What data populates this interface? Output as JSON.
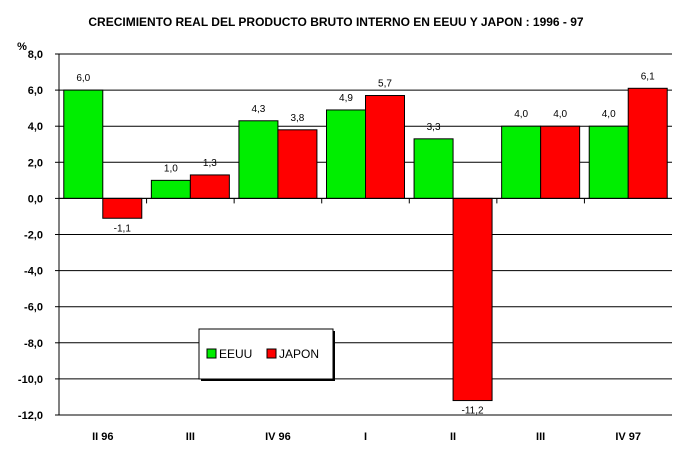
{
  "chart_data": {
    "type": "bar",
    "title": "CRECIMIENTO REAL DEL PRODUCTO BRUTO INTERNO EN EEUU Y JAPON : 1996 - 97",
    "ylabel": "%",
    "xlabel": "",
    "categories": [
      "II  96",
      "III",
      "IV 96",
      "I",
      "II",
      "III",
      "IV 97"
    ],
    "series": [
      {
        "name": "EEUU",
        "color": "#00ee00",
        "values": [
          6.0,
          1.0,
          4.3,
          4.9,
          3.3,
          4.0,
          4.0
        ]
      },
      {
        "name": "JAPON",
        "color": "#ff0000",
        "values": [
          -1.1,
          1.3,
          3.8,
          5.7,
          -11.2,
          4.0,
          6.1
        ]
      }
    ],
    "value_labels": {
      "EEUU": [
        "6,0",
        "1,0",
        "4,3",
        "4,9",
        "3,3",
        "4,0",
        "4,0"
      ],
      "JAPON": [
        "-1,1",
        "1,3",
        "3,8",
        "5,7",
        "-11,2",
        "4,0",
        "6,1"
      ]
    },
    "ylim": [
      -12,
      8
    ],
    "yticks": [
      8,
      6,
      4,
      2,
      0,
      -2,
      -4,
      -6,
      -8,
      -10,
      -12
    ],
    "ytick_labels": [
      "8,0",
      "6,0",
      "4,0",
      "2,0",
      "0,0",
      "-2,0",
      "-4,0",
      "-6,0",
      "-8,0",
      "-10,0",
      "-12,0"
    ],
    "grid": true,
    "legend": {
      "position": "bottom-left",
      "entries": [
        "EEUU",
        "JAPON"
      ]
    }
  }
}
